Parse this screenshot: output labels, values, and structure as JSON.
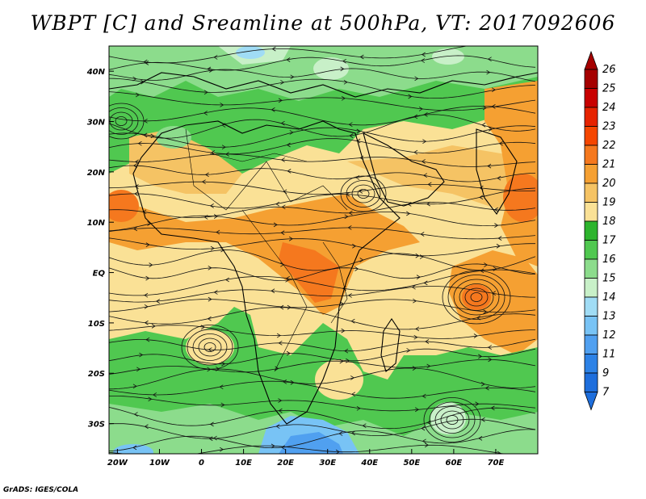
{
  "title": "WBPT [C] and Sreamline at 500hPa, VT: 2017092606",
  "credit": "GrADS: IGES/COLA",
  "lat_labels": [
    "40N",
    "30N",
    "20N",
    "10N",
    "EQ",
    "10S",
    "20S",
    "30S"
  ],
  "lat_values": [
    40,
    30,
    20,
    10,
    0,
    -10,
    -20,
    -30
  ],
  "lon_labels": [
    "20W",
    "10W",
    "0",
    "10E",
    "20E",
    "30E",
    "40E",
    "50E",
    "60E",
    "70E"
  ],
  "lon_values": [
    -20,
    -10,
    0,
    10,
    20,
    30,
    40,
    50,
    60,
    70
  ],
  "extent": {
    "lon_min": -22,
    "lon_max": 80,
    "lat_min": -36,
    "lat_max": 45
  },
  "colorbar": {
    "labels": [
      "26",
      "25",
      "24",
      "23",
      "22",
      "21",
      "20",
      "19",
      "18",
      "17",
      "16",
      "15",
      "14",
      "13",
      "12",
      "11",
      "9",
      "7"
    ],
    "colors": [
      "#a50000",
      "#c80000",
      "#e62300",
      "#f54600",
      "#f5781e",
      "#f5a032",
      "#f5c364",
      "#fae196",
      "#2db42d",
      "#50c850",
      "#8cdc8c",
      "#c8f0c8",
      "#a0dcf5",
      "#78c3f5",
      "#50a0f0",
      "#2d82e6",
      "#1e6edc"
    ]
  }
}
